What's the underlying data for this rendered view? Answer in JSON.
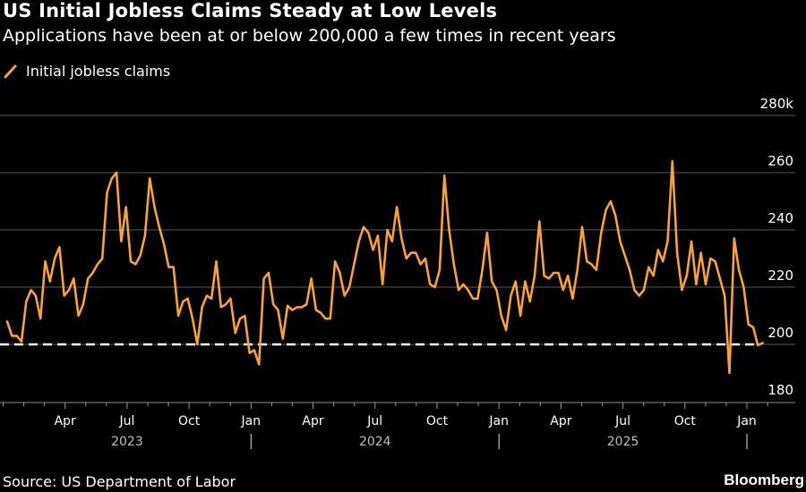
{
  "header": {
    "title": "US Initial Jobless Claims Steady at Low Levels",
    "subtitle": "Applications have been at or below 200,000 a few times in recent years"
  },
  "legend": {
    "items": [
      {
        "label": "Initial jobless claims",
        "icon": "line-swatch-icon"
      }
    ]
  },
  "footer": {
    "source": "Source: US Department of Labor",
    "brand": "Bloomberg"
  },
  "colors": {
    "series": "#f8a236",
    "background": "#000000",
    "grid": "#5a5a5a",
    "reference_line": "#ffffff",
    "text": "#ffffff"
  },
  "chart_data": {
    "type": "line",
    "title": "US Initial Jobless Claims Steady at Low Levels",
    "subtitle": "Applications have been at or below 200,000 a few times in recent years",
    "xlabel": "",
    "ylabel": "",
    "frequency": "weekly",
    "x_start": "2023-01-07",
    "x_end": "2025-01-18",
    "ylim": [
      180,
      280
    ],
    "y_unit": "thousands",
    "y_ticks": [
      {
        "value": 280,
        "label": "280k"
      },
      {
        "value": 260,
        "label": "260"
      },
      {
        "value": 240,
        "label": "240"
      },
      {
        "value": 220,
        "label": "220"
      },
      {
        "value": 200,
        "label": "200"
      },
      {
        "value": 180,
        "label": "180"
      }
    ],
    "x_ticks": [
      {
        "label": "Apr",
        "month_index": 3
      },
      {
        "label": "Jul",
        "month_index": 6
      },
      {
        "label": "Oct",
        "month_index": 9
      },
      {
        "label": "Jan",
        "month_index": 12
      },
      {
        "label": "Apr",
        "month_index": 15
      },
      {
        "label": "Jul",
        "month_index": 18
      },
      {
        "label": "Oct",
        "month_index": 21
      },
      {
        "label": "Jan",
        "month_index": 24
      },
      {
        "label": "Apr",
        "month_index": 27
      },
      {
        "label": "Jul",
        "month_index": 30
      },
      {
        "label": "Oct",
        "month_index": 33
      },
      {
        "label": "Jan",
        "month_index": 36
      }
    ],
    "year_labels": [
      {
        "label": "2023",
        "month_index": 6
      },
      {
        "label": "2024",
        "month_index": 18
      },
      {
        "label": "2025",
        "month_index": 30
      }
    ],
    "year_separators": [
      12,
      24,
      36
    ],
    "grid": true,
    "legend_position": "top-left",
    "reference_lines": [
      {
        "value": 200,
        "style": "dashed",
        "color": "#ffffff"
      }
    ],
    "series": [
      {
        "name": "Initial jobless claims",
        "color": "#f8a236",
        "values": [
          208,
          203,
          203,
          201,
          215,
          219,
          217,
          209,
          229,
          222,
          230,
          234,
          217,
          219,
          223,
          210,
          214,
          223,
          225,
          228,
          230,
          253,
          258,
          260,
          236,
          248,
          229,
          228,
          231,
          238,
          258,
          248,
          241,
          235,
          227,
          227,
          210,
          215,
          216,
          209,
          200,
          213,
          217,
          216,
          229,
          213,
          214,
          216,
          204,
          209,
          210,
          197,
          198,
          193,
          223,
          225,
          214,
          212,
          202,
          213.5,
          212,
          213,
          213,
          214,
          223,
          212,
          211,
          209,
          209,
          229,
          225,
          217,
          220,
          228,
          236,
          241,
          239,
          233,
          238,
          221,
          240,
          236,
          248,
          237,
          230,
          232,
          232,
          228,
          230,
          221,
          220,
          226,
          259,
          240,
          228,
          219,
          221,
          219,
          216,
          216,
          226,
          239,
          222,
          219,
          210,
          205,
          217,
          222,
          210,
          222,
          215,
          224,
          243,
          224,
          223,
          225,
          225,
          219,
          224,
          216,
          226,
          241,
          229,
          228,
          226,
          239,
          247,
          250,
          245,
          236,
          231,
          226,
          219,
          217,
          219,
          227,
          224,
          233,
          229,
          236,
          264,
          232,
          219,
          224,
          236,
          221,
          232,
          221,
          230,
          229,
          223,
          217,
          190,
          237,
          226,
          220,
          207,
          206,
          199.7,
          200.5
        ]
      }
    ]
  }
}
